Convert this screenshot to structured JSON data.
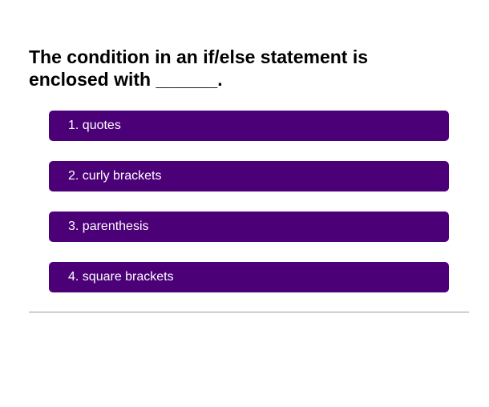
{
  "quiz": {
    "question": "The condition in an if/else statement is enclosed with ______.",
    "choices": [
      {
        "label": "1. quotes"
      },
      {
        "label": "2. curly brackets"
      },
      {
        "label": "3. parenthesis"
      },
      {
        "label": "4. square brackets"
      }
    ]
  },
  "colors": {
    "choice_background": "#4b0077",
    "choice_text": "#ffffff",
    "divider": "#9a9a9a"
  }
}
